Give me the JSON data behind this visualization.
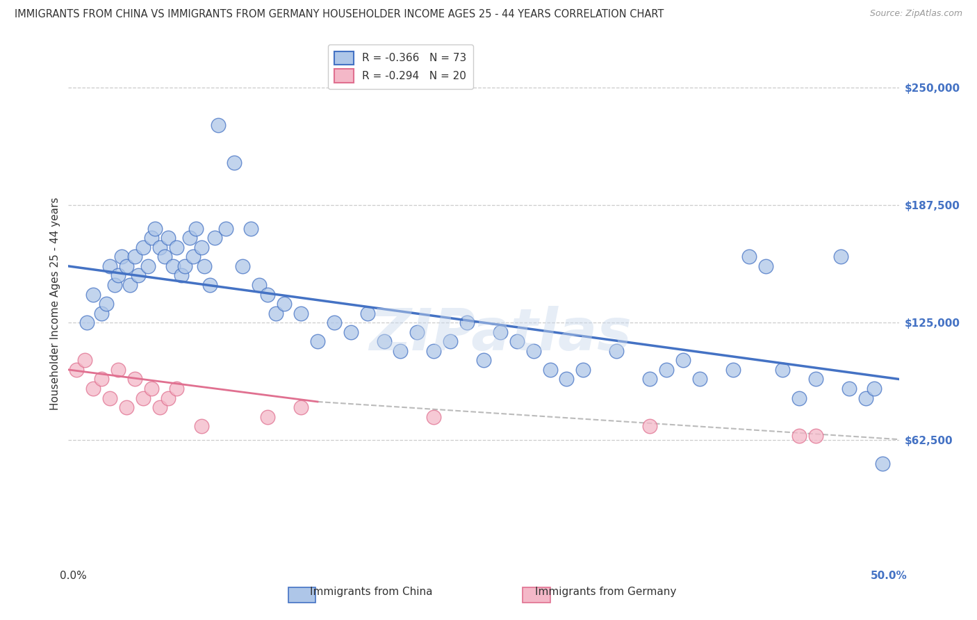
{
  "title": "IMMIGRANTS FROM CHINA VS IMMIGRANTS FROM GERMANY HOUSEHOLDER INCOME AGES 25 - 44 YEARS CORRELATION CHART",
  "source": "Source: ZipAtlas.com",
  "ylabel": "Householder Income Ages 25 - 44 years",
  "xlim": [
    0.0,
    50.0
  ],
  "ylim": [
    0,
    270000
  ],
  "legend_china_r": "-0.366",
  "legend_china_n": "73",
  "legend_germany_r": "-0.294",
  "legend_germany_n": "20",
  "china_fill_color": "#aec6e8",
  "china_edge_color": "#4472c4",
  "germany_fill_color": "#f4b8c8",
  "germany_edge_color": "#e07090",
  "china_line_color": "#4472c4",
  "germany_line_color": "#e07090",
  "gray_dash_color": "#bbbbbb",
  "background_color": "#ffffff",
  "watermark": "ZIPatlas",
  "china_x": [
    1.1,
    1.5,
    2.0,
    2.3,
    2.5,
    2.8,
    3.0,
    3.2,
    3.5,
    3.7,
    4.0,
    4.2,
    4.5,
    4.8,
    5.0,
    5.2,
    5.5,
    5.8,
    6.0,
    6.3,
    6.5,
    6.8,
    7.0,
    7.3,
    7.5,
    7.7,
    8.0,
    8.2,
    8.5,
    8.8,
    9.0,
    9.5,
    10.0,
    10.5,
    11.0,
    11.5,
    12.0,
    12.5,
    13.0,
    14.0,
    15.0,
    16.0,
    17.0,
    18.0,
    19.0,
    20.0,
    21.0,
    22.0,
    23.0,
    24.0,
    25.0,
    26.0,
    27.0,
    28.0,
    29.0,
    30.0,
    31.0,
    33.0,
    35.0,
    36.0,
    37.0,
    38.0,
    40.0,
    41.0,
    42.0,
    43.0,
    44.0,
    45.0,
    46.5,
    47.0,
    48.0,
    48.5,
    49.0
  ],
  "china_y": [
    125000,
    140000,
    130000,
    135000,
    155000,
    145000,
    150000,
    160000,
    155000,
    145000,
    160000,
    150000,
    165000,
    155000,
    170000,
    175000,
    165000,
    160000,
    170000,
    155000,
    165000,
    150000,
    155000,
    170000,
    160000,
    175000,
    165000,
    155000,
    145000,
    170000,
    230000,
    175000,
    210000,
    155000,
    175000,
    145000,
    140000,
    130000,
    135000,
    130000,
    115000,
    125000,
    120000,
    130000,
    115000,
    110000,
    120000,
    110000,
    115000,
    125000,
    105000,
    120000,
    115000,
    110000,
    100000,
    95000,
    100000,
    110000,
    95000,
    100000,
    105000,
    95000,
    100000,
    160000,
    155000,
    100000,
    85000,
    95000,
    160000,
    90000,
    85000,
    90000,
    50000
  ],
  "germany_x": [
    0.5,
    1.0,
    1.5,
    2.0,
    2.5,
    3.0,
    3.5,
    4.0,
    4.5,
    5.0,
    5.5,
    6.0,
    6.5,
    8.0,
    12.0,
    14.0,
    22.0,
    35.0,
    44.0,
    45.0
  ],
  "germany_y": [
    100000,
    105000,
    90000,
    95000,
    85000,
    100000,
    80000,
    95000,
    85000,
    90000,
    80000,
    85000,
    90000,
    70000,
    75000,
    80000,
    75000,
    70000,
    65000,
    65000
  ],
  "china_line_x0": 0.0,
  "china_line_x1": 50.0,
  "china_line_y0": 155000,
  "china_line_y1": 95000,
  "germany_solid_x0": 0.0,
  "germany_solid_x1": 15.0,
  "germany_solid_y0": 100000,
  "germany_solid_y1": 83000,
  "germany_dash_x0": 15.0,
  "germany_dash_x1": 50.0,
  "germany_dash_y0": 83000,
  "germany_dash_y1": 63000
}
